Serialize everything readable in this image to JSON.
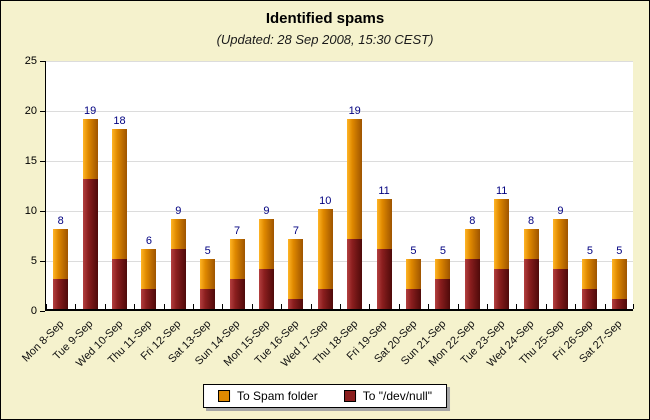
{
  "header": {
    "title": "Identified spams",
    "subtitle": "(Updated: 28 Sep 2008, 15:30 CEST)"
  },
  "colors": {
    "page_background": "#F5F2CD",
    "plot_background": "#FFFFFF",
    "gridline": "#DCDCDC",
    "axis": "#000000",
    "value_label": "#000080",
    "legend_shadow": "#A6A6A6"
  },
  "chart_data": {
    "type": "bar",
    "stacked": true,
    "title": "Identified spams",
    "subtitle": "(Updated: 28 Sep 2008, 15:30 CEST)",
    "categories": [
      "Mon 8-Sep",
      "Tue 9-Sep",
      "Wed 10-Sep",
      "Thu 11-Sep",
      "Fri 12-Sep",
      "Sat 13-Sep",
      "Sun 14-Sep",
      "Mon 15-Sep",
      "Tue 16-Sep",
      "Wed 17-Sep",
      "Thu 18-Sep",
      "Fri 19-Sep",
      "Sat 20-Sep",
      "Sun 21-Sep",
      "Mon 22-Sep",
      "Tue 23-Sep",
      "Wed 24-Sep",
      "Thu 25-Sep",
      "Fri 26-Sep",
      "Sat 27-Sep"
    ],
    "series": [
      {
        "name": "To Spam folder",
        "stack_index": 1,
        "color": "#E08900",
        "gradient": [
          "#FFB525",
          "#E08900",
          "#9E5400"
        ],
        "values": [
          5,
          6,
          13,
          4,
          3,
          3,
          4,
          5,
          6,
          8,
          12,
          5,
          3,
          2,
          3,
          7,
          3,
          5,
          3,
          4
        ]
      },
      {
        "name": "To \"/dev/null\"",
        "stack_index": 0,
        "color": "#8B1E1E",
        "gradient": [
          "#B44040",
          "#8B1E1E",
          "#4E0A0A"
        ],
        "values": [
          3,
          13,
          5,
          2,
          6,
          2,
          3,
          4,
          1,
          2,
          7,
          6,
          2,
          3,
          5,
          4,
          5,
          4,
          2,
          1
        ]
      }
    ],
    "totals": [
      8,
      19,
      18,
      6,
      9,
      5,
      7,
      9,
      7,
      10,
      19,
      11,
      5,
      5,
      8,
      11,
      8,
      9,
      5,
      5
    ],
    "xlabel": "",
    "ylabel": "",
    "ylim": [
      0,
      25
    ],
    "ytick_step": 5,
    "grid": true,
    "legend_position": "bottom"
  },
  "legend": {
    "items": [
      {
        "label": "To Spam folder"
      },
      {
        "label": "To \"/dev/null\""
      }
    ]
  }
}
